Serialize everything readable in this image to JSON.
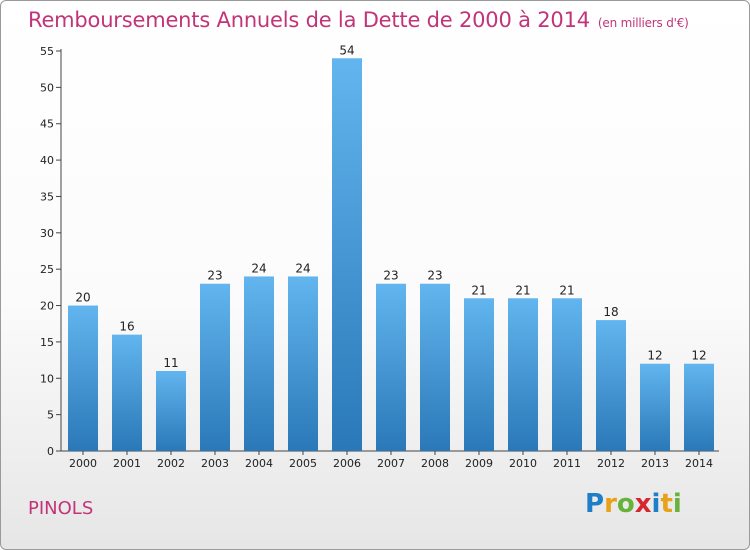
{
  "title": "Remboursements Annuels de la Dette de 2000 à 2014",
  "unit_label": "(en milliers d'€)",
  "commune": "PINOLS",
  "logo": {
    "letters": [
      "P",
      "r",
      "o",
      "x",
      "i",
      "t",
      "i"
    ],
    "colors": [
      "#1e7fc8",
      "#e8a21a",
      "#67b23a",
      "#d6262e",
      "#1e7fc8",
      "#e8a21a",
      "#67b23a"
    ]
  },
  "colors": {
    "title": "#c2347a",
    "bar_light": "#62b5ee",
    "bar_dark": "#2a78b8"
  },
  "chart_data": {
    "type": "bar",
    "title": "Remboursements Annuels de la Dette de 2000 à 2014",
    "categories": [
      "2000",
      "2001",
      "2002",
      "2003",
      "2004",
      "2005",
      "2006",
      "2007",
      "2008",
      "2009",
      "2010",
      "2011",
      "2012",
      "2013",
      "2014"
    ],
    "values": [
      20,
      16,
      11,
      23,
      24,
      24,
      54,
      23,
      23,
      21,
      21,
      21,
      18,
      12,
      12
    ],
    "ylim": [
      0,
      55
    ],
    "yticks": [
      0,
      5,
      10,
      15,
      20,
      25,
      30,
      35,
      40,
      45,
      50,
      55
    ],
    "grid": false,
    "xlabel": "",
    "ylabel": ""
  }
}
